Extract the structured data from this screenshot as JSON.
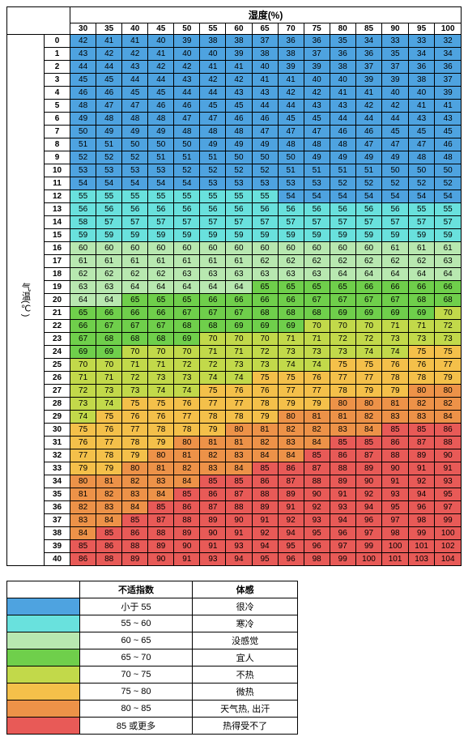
{
  "axes": {
    "humidity_label": "湿度(%)",
    "temperature_label": "气温(℃)",
    "humidity_values": [
      30,
      35,
      40,
      45,
      50,
      55,
      60,
      65,
      70,
      75,
      80,
      85,
      90,
      95,
      100
    ],
    "temperature_values": [
      0,
      1,
      2,
      3,
      4,
      5,
      6,
      7,
      8,
      9,
      10,
      11,
      12,
      13,
      14,
      15,
      16,
      17,
      18,
      19,
      20,
      21,
      22,
      23,
      24,
      25,
      26,
      27,
      28,
      29,
      30,
      31,
      32,
      33,
      34,
      35,
      36,
      37,
      38,
      39,
      40
    ]
  },
  "data_rows": [
    [
      42,
      41,
      41,
      40,
      39,
      38,
      38,
      37,
      36,
      36,
      35,
      34,
      33,
      33,
      32
    ],
    [
      43,
      42,
      42,
      41,
      40,
      40,
      39,
      38,
      38,
      37,
      36,
      36,
      35,
      34,
      34
    ],
    [
      44,
      44,
      43,
      42,
      42,
      41,
      41,
      40,
      39,
      39,
      38,
      37,
      37,
      36,
      36
    ],
    [
      45,
      45,
      44,
      44,
      43,
      42,
      42,
      41,
      41,
      40,
      40,
      39,
      39,
      38,
      37
    ],
    [
      46,
      46,
      45,
      45,
      44,
      44,
      43,
      43,
      42,
      42,
      41,
      41,
      40,
      40,
      39
    ],
    [
      48,
      47,
      47,
      46,
      46,
      45,
      45,
      44,
      44,
      43,
      43,
      42,
      42,
      41,
      41
    ],
    [
      49,
      48,
      48,
      48,
      47,
      47,
      46,
      46,
      45,
      45,
      44,
      44,
      44,
      43,
      43
    ],
    [
      50,
      49,
      49,
      49,
      48,
      48,
      48,
      47,
      47,
      47,
      46,
      46,
      45,
      45,
      45
    ],
    [
      51,
      51,
      50,
      50,
      50,
      49,
      49,
      49,
      48,
      48,
      48,
      47,
      47,
      47,
      46
    ],
    [
      52,
      52,
      52,
      51,
      51,
      51,
      50,
      50,
      50,
      49,
      49,
      49,
      49,
      48,
      48
    ],
    [
      53,
      53,
      53,
      53,
      52,
      52,
      52,
      52,
      51,
      51,
      51,
      51,
      50,
      50,
      50
    ],
    [
      54,
      54,
      54,
      54,
      54,
      53,
      53,
      53,
      53,
      53,
      52,
      52,
      52,
      52,
      52
    ],
    [
      55,
      55,
      55,
      55,
      55,
      55,
      55,
      55,
      54,
      54,
      54,
      54,
      54,
      54,
      54
    ],
    [
      56,
      56,
      56,
      56,
      56,
      56,
      56,
      56,
      56,
      56,
      56,
      56,
      56,
      55,
      55
    ],
    [
      58,
      57,
      57,
      57,
      57,
      57,
      57,
      57,
      57,
      57,
      57,
      57,
      57,
      57,
      57
    ],
    [
      59,
      59,
      59,
      59,
      59,
      59,
      59,
      59,
      59,
      59,
      59,
      59,
      59,
      59,
      59
    ],
    [
      60,
      60,
      60,
      60,
      60,
      60,
      60,
      60,
      60,
      60,
      60,
      60,
      61,
      61,
      61
    ],
    [
      61,
      61,
      61,
      61,
      61,
      61,
      61,
      62,
      62,
      62,
      62,
      62,
      62,
      62,
      63
    ],
    [
      62,
      62,
      62,
      62,
      63,
      63,
      63,
      63,
      63,
      63,
      64,
      64,
      64,
      64,
      64
    ],
    [
      63,
      63,
      64,
      64,
      64,
      64,
      64,
      65,
      65,
      65,
      65,
      66,
      66,
      66,
      66
    ],
    [
      64,
      64,
      65,
      65,
      65,
      66,
      66,
      66,
      66,
      67,
      67,
      67,
      67,
      68,
      68
    ],
    [
      65,
      66,
      66,
      66,
      67,
      67,
      67,
      68,
      68,
      68,
      69,
      69,
      69,
      69,
      70
    ],
    [
      66,
      67,
      67,
      67,
      68,
      68,
      69,
      69,
      69,
      70,
      70,
      70,
      71,
      71,
      72
    ],
    [
      67,
      68,
      68,
      68,
      69,
      70,
      70,
      70,
      71,
      71,
      72,
      72,
      73,
      73,
      73
    ],
    [
      69,
      69,
      70,
      70,
      70,
      71,
      71,
      72,
      73,
      73,
      73,
      74,
      74,
      75,
      75
    ],
    [
      70,
      70,
      71,
      71,
      72,
      72,
      73,
      73,
      74,
      74,
      75,
      75,
      76,
      76,
      77
    ],
    [
      71,
      71,
      72,
      73,
      73,
      74,
      74,
      75,
      75,
      76,
      77,
      77,
      78,
      78,
      79
    ],
    [
      72,
      73,
      73,
      74,
      74,
      75,
      76,
      76,
      77,
      77,
      78,
      79,
      79,
      80,
      80
    ],
    [
      73,
      74,
      75,
      75,
      76,
      77,
      77,
      78,
      79,
      79,
      80,
      80,
      81,
      82,
      82
    ],
    [
      74,
      75,
      76,
      76,
      77,
      78,
      78,
      79,
      80,
      81,
      81,
      82,
      83,
      83,
      84
    ],
    [
      75,
      76,
      77,
      78,
      78,
      79,
      80,
      81,
      82,
      82,
      83,
      84,
      85,
      85,
      86
    ],
    [
      76,
      77,
      78,
      79,
      80,
      81,
      81,
      82,
      83,
      84,
      85,
      85,
      86,
      87,
      88
    ],
    [
      77,
      78,
      79,
      80,
      81,
      82,
      83,
      84,
      84,
      85,
      86,
      87,
      88,
      89,
      90
    ],
    [
      79,
      79,
      80,
      81,
      82,
      83,
      84,
      85,
      86,
      87,
      88,
      89,
      90,
      91,
      91
    ],
    [
      80,
      81,
      82,
      83,
      84,
      85,
      85,
      86,
      87,
      88,
      89,
      90,
      91,
      92,
      93
    ],
    [
      81,
      82,
      83,
      84,
      85,
      86,
      87,
      88,
      89,
      90,
      91,
      92,
      93,
      94,
      95
    ],
    [
      82,
      83,
      84,
      85,
      86,
      87,
      88,
      89,
      91,
      92,
      93,
      94,
      95,
      96,
      97
    ],
    [
      83,
      84,
      85,
      87,
      88,
      89,
      90,
      91,
      92,
      93,
      94,
      96,
      97,
      98,
      99
    ],
    [
      84,
      85,
      86,
      88,
      89,
      90,
      91,
      92,
      94,
      95,
      96,
      97,
      98,
      99,
      100
    ],
    [
      85,
      86,
      88,
      89,
      90,
      91,
      93,
      94,
      95,
      96,
      97,
      99,
      100,
      101,
      102
    ],
    [
      86,
      88,
      89,
      90,
      91,
      93,
      94,
      95,
      96,
      98,
      99,
      100,
      101,
      103,
      104
    ]
  ],
  "color_bands": [
    {
      "max": 54,
      "color": "#4ea3e0",
      "range_label": "小于 55",
      "feel_label": "很冷"
    },
    {
      "max": 59,
      "color": "#69e1dd",
      "range_label": "55 ~ 60",
      "feel_label": "寒冷"
    },
    {
      "max": 64,
      "color": "#b8e8b0",
      "range_label": "60 ~ 65",
      "feel_label": "没感觉"
    },
    {
      "max": 69,
      "color": "#6fcf4b",
      "range_label": "65 ~ 70",
      "feel_label": "宜人"
    },
    {
      "max": 74,
      "color": "#c2d94a",
      "range_label": "70 ~ 75",
      "feel_label": "不热"
    },
    {
      "max": 79,
      "color": "#f4c04a",
      "range_label": "75 ~ 80",
      "feel_label": "微热"
    },
    {
      "max": 84,
      "color": "#ed9248",
      "range_label": "80 ~ 85",
      "feel_label": "天气热, 出汗"
    },
    {
      "max": 9999,
      "color": "#e85a57",
      "range_label": "85 或更多",
      "feel_label": "热得受不了"
    }
  ],
  "legend_headers": {
    "index": "不适指数",
    "feel": "体感"
  },
  "style": {
    "cell_border": "#000000",
    "background": "#ffffff",
    "font_size_pt": 8,
    "header_font_size_pt": 10
  }
}
